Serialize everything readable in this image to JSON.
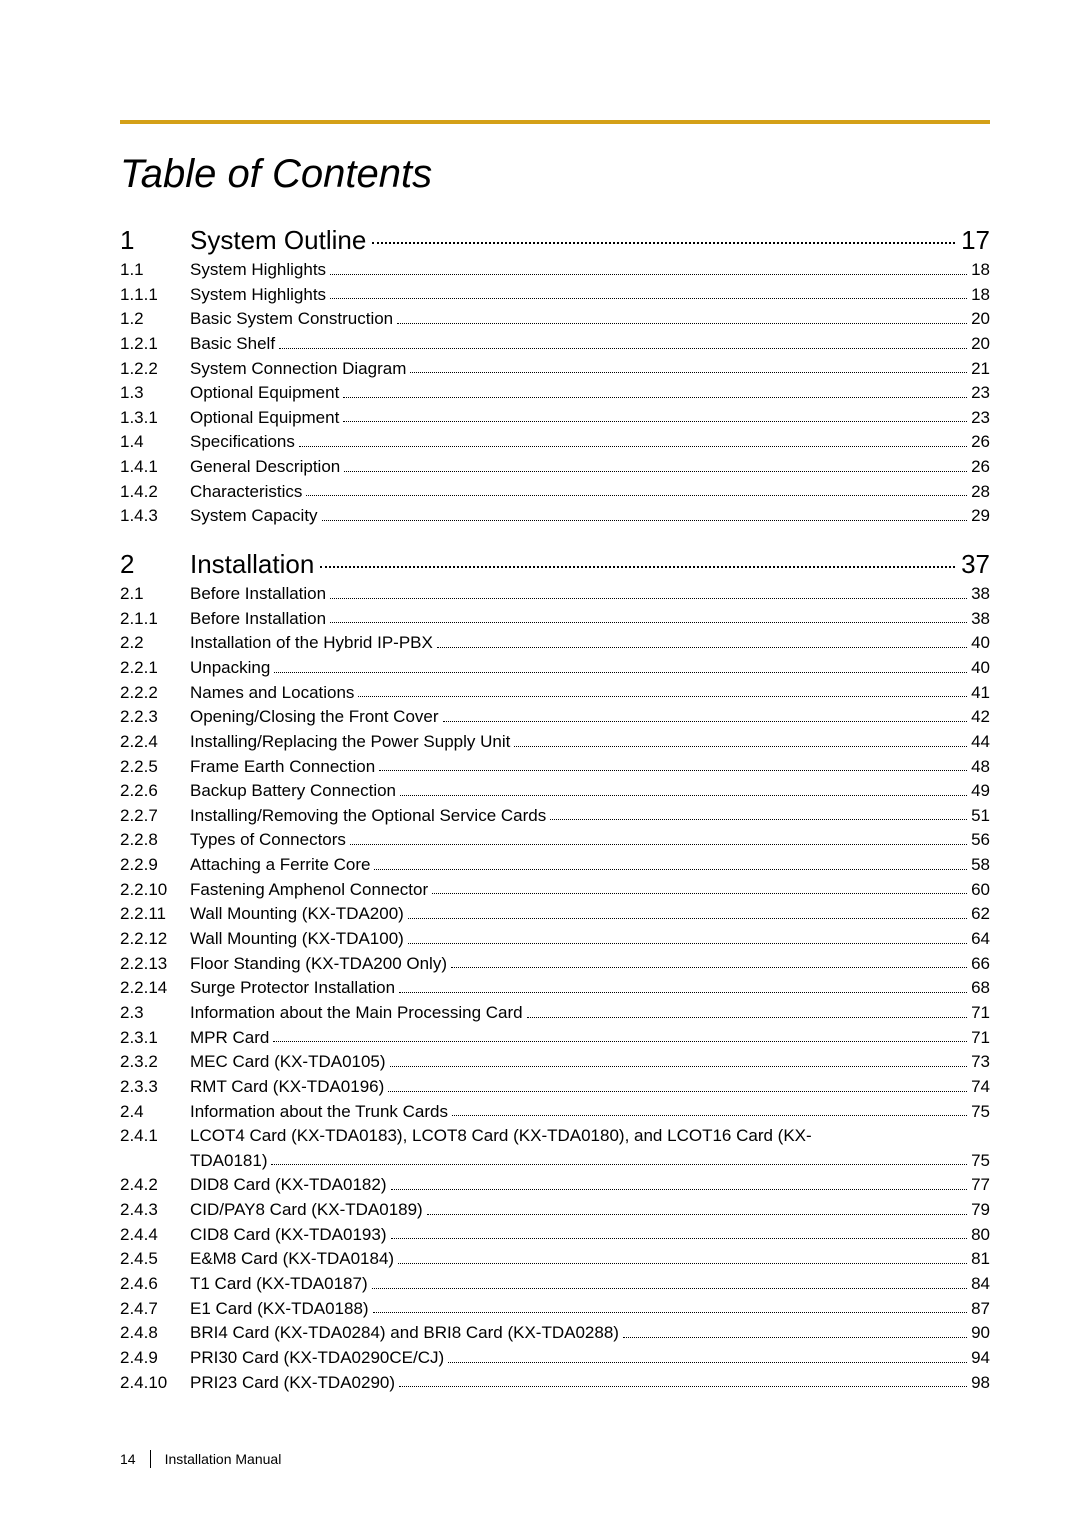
{
  "page": {
    "title": "Table of Contents",
    "rule_color": "#d4a017",
    "footer_page": "14",
    "footer_label": "Installation Manual"
  },
  "sections": [
    {
      "num": "1",
      "label": "System Outline",
      "page": "17",
      "entries": [
        {
          "num": "1.1",
          "label": "System Highlights",
          "page": "18"
        },
        {
          "num": "1.1.1",
          "label": "System Highlights",
          "page": "18"
        },
        {
          "num": "1.2",
          "label": "Basic System Construction",
          "page": "20"
        },
        {
          "num": "1.2.1",
          "label": "Basic Shelf",
          "page": "20"
        },
        {
          "num": "1.2.2",
          "label": "System Connection Diagram",
          "page": "21"
        },
        {
          "num": "1.3",
          "label": "Optional Equipment",
          "page": "23"
        },
        {
          "num": "1.3.1",
          "label": "Optional Equipment",
          "page": "23"
        },
        {
          "num": "1.4",
          "label": "Specifications",
          "page": "26"
        },
        {
          "num": "1.4.1",
          "label": "General Description",
          "page": "26"
        },
        {
          "num": "1.4.2",
          "label": "Characteristics",
          "page": "28"
        },
        {
          "num": "1.4.3",
          "label": "System Capacity",
          "page": "29"
        }
      ]
    },
    {
      "num": "2",
      "label": "Installation",
      "page": "37",
      "entries": [
        {
          "num": "2.1",
          "label": "Before Installation",
          "page": "38"
        },
        {
          "num": "2.1.1",
          "label": "Before Installation",
          "page": "38"
        },
        {
          "num": "2.2",
          "label": "Installation of the Hybrid IP-PBX",
          "page": "40"
        },
        {
          "num": "2.2.1",
          "label": "Unpacking",
          "page": "40"
        },
        {
          "num": "2.2.2",
          "label": "Names and Locations",
          "page": "41"
        },
        {
          "num": "2.2.3",
          "label": "Opening/Closing the Front Cover",
          "page": "42"
        },
        {
          "num": "2.2.4",
          "label": "Installing/Replacing the Power Supply Unit",
          "page": "44"
        },
        {
          "num": "2.2.5",
          "label": "Frame Earth Connection",
          "page": "48"
        },
        {
          "num": "2.2.6",
          "label": "Backup Battery Connection",
          "page": "49"
        },
        {
          "num": "2.2.7",
          "label": "Installing/Removing the Optional Service Cards",
          "page": "51"
        },
        {
          "num": "2.2.8",
          "label": "Types of Connectors",
          "page": "56"
        },
        {
          "num": "2.2.9",
          "label": "Attaching a Ferrite Core",
          "page": "58"
        },
        {
          "num": "2.2.10",
          "label": "Fastening Amphenol Connector",
          "page": "60"
        },
        {
          "num": "2.2.11",
          "label": "Wall Mounting (KX-TDA200)",
          "page": "62"
        },
        {
          "num": "2.2.12",
          "label": "Wall Mounting (KX-TDA100)",
          "page": "64"
        },
        {
          "num": "2.2.13",
          "label": "Floor Standing (KX-TDA200 Only)",
          "page": "66"
        },
        {
          "num": "2.2.14",
          "label": "Surge Protector Installation",
          "page": "68"
        },
        {
          "num": "2.3",
          "label": "Information about the Main Processing Card",
          "page": "71"
        },
        {
          "num": "2.3.1",
          "label": "MPR Card",
          "page": "71"
        },
        {
          "num": "2.3.2",
          "label": "MEC Card (KX-TDA0105)",
          "page": "73"
        },
        {
          "num": "2.3.3",
          "label": "RMT Card (KX-TDA0196)",
          "page": "74"
        },
        {
          "num": "2.4",
          "label": "Information about the Trunk Cards",
          "page": "75"
        },
        {
          "num": "2.4.1",
          "label": "LCOT4 Card (KX-TDA0183), LCOT8 Card (KX-TDA0180), and LCOT16 Card (KX-TDA0181)",
          "page": "75",
          "wrap": true
        },
        {
          "num": "2.4.2",
          "label": "DID8 Card (KX-TDA0182)",
          "page": "77"
        },
        {
          "num": "2.4.3",
          "label": "CID/PAY8 Card (KX-TDA0189)",
          "page": "79"
        },
        {
          "num": "2.4.4",
          "label": "CID8 Card (KX-TDA0193)",
          "page": "80"
        },
        {
          "num": "2.4.5",
          "label": "E&M8 Card (KX-TDA0184)",
          "page": "81"
        },
        {
          "num": "2.4.6",
          "label": "T1 Card (KX-TDA0187)",
          "page": "84"
        },
        {
          "num": "2.4.7",
          "label": "E1 Card (KX-TDA0188)",
          "page": "87"
        },
        {
          "num": "2.4.8",
          "label": "BRI4 Card (KX-TDA0284) and BRI8 Card (KX-TDA0288)",
          "page": "90"
        },
        {
          "num": "2.4.9",
          "label": "PRI30 Card (KX-TDA0290CE/CJ)",
          "page": "94"
        },
        {
          "num": "2.4.10",
          "label": "PRI23 Card (KX-TDA0290)",
          "page": "98"
        }
      ]
    }
  ]
}
